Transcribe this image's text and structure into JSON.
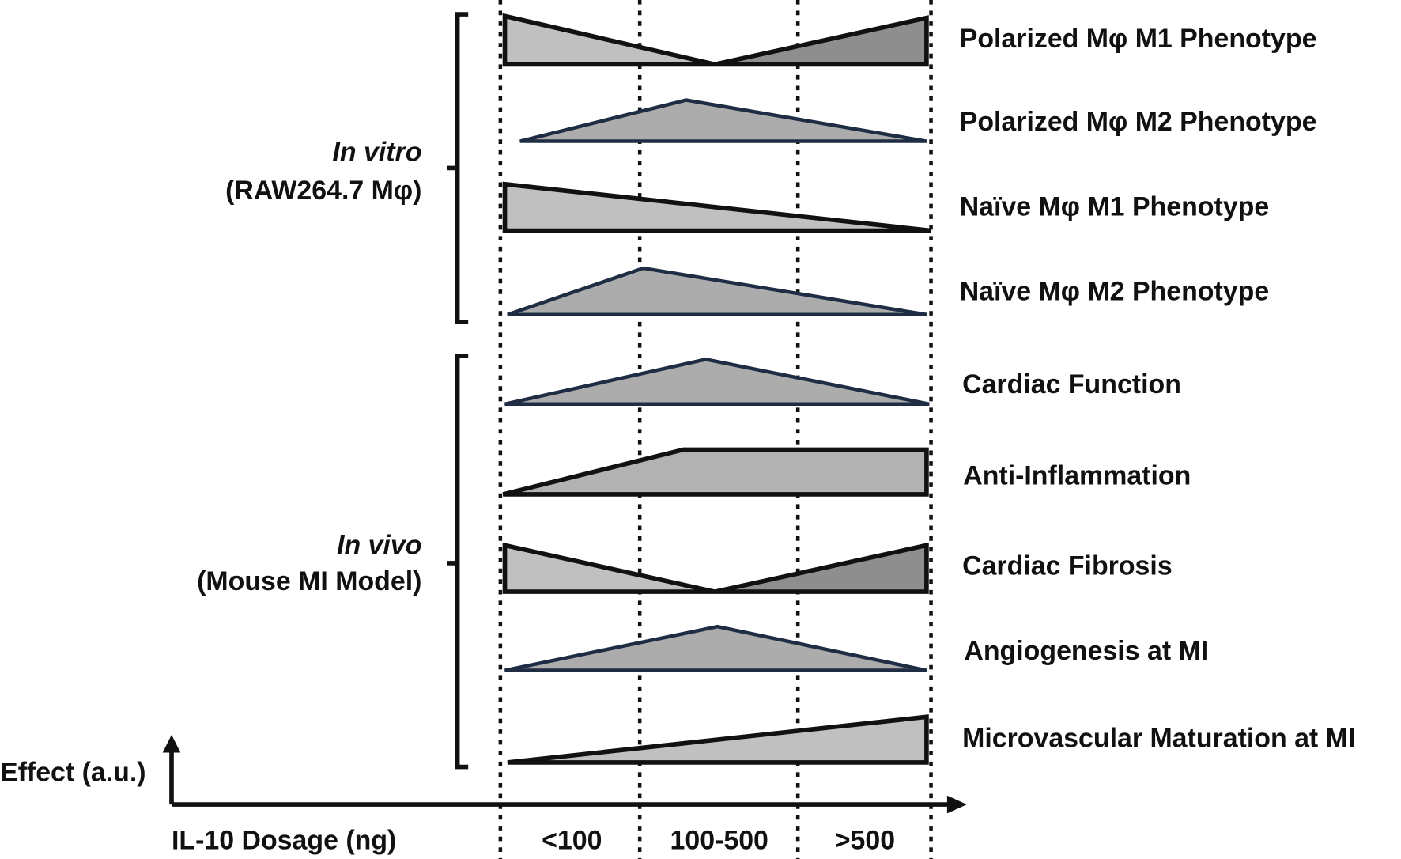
{
  "groups": [
    {
      "label": "In vitro",
      "sublabel": "(RAW264.7 Mφ)"
    },
    {
      "label": "In vivo",
      "sublabel": "(Mouse MI Model)"
    }
  ],
  "rows": [
    "Polarized Mφ M1 Phenotype",
    "Polarized Mφ M2 Phenotype",
    "Naïve Mφ M1 Phenotype",
    "Naïve Mφ M2 Phenotype",
    "Cardiac Function",
    "Anti-Inflammation",
    "Cardiac Fibrosis",
    "Angiogenesis at MI",
    "Microvascular Maturation at MI"
  ],
  "axis": {
    "y_label": "Effect (a.u.)",
    "x_label": "IL-10 Dosage (ng)"
  },
  "dosage_ranges": [
    "<100",
    "100-500",
    ">500"
  ]
}
